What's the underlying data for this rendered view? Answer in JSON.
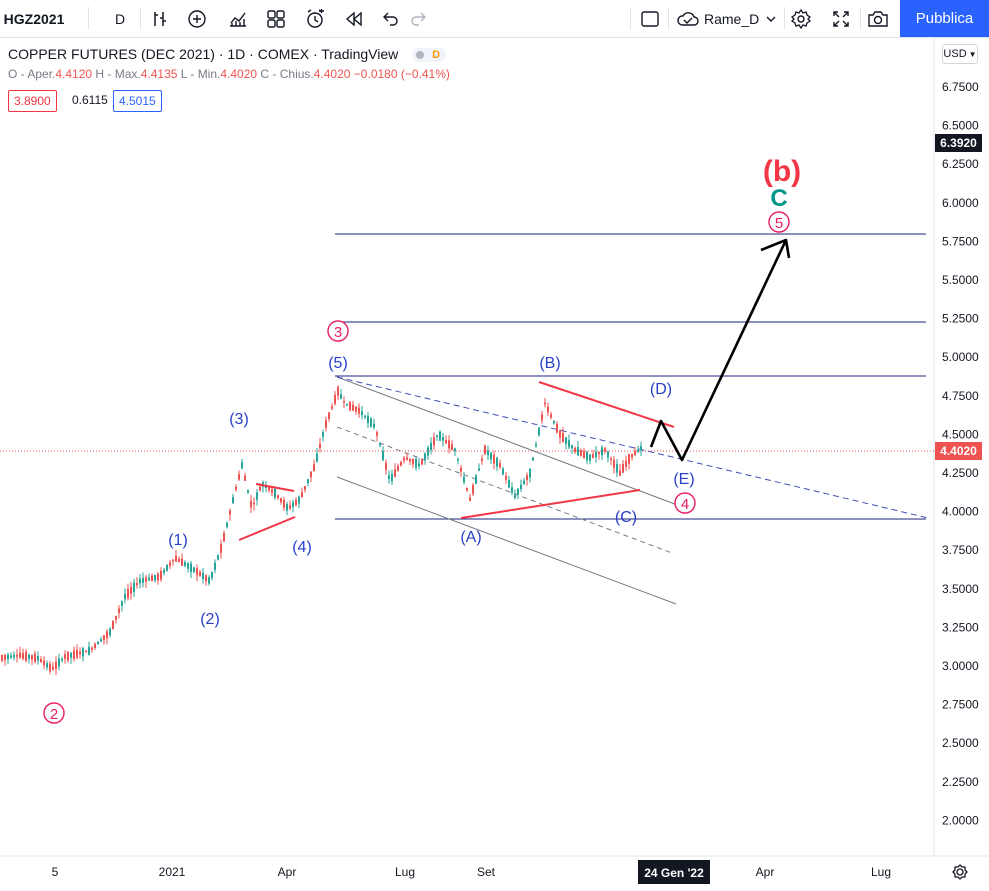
{
  "toolbar": {
    "symbol": "HGZ2021",
    "interval": "D",
    "layout_name": "Rame_D",
    "publish_label": "Pubblica",
    "icons": [
      "bar-style-icon",
      "add-indicator-icon",
      "indicators-icon",
      "templates-icon",
      "alert-icon",
      "replay-icon",
      "undo-icon",
      "redo-icon",
      "rectangle-icon",
      "cloud-icon",
      "settings-icon",
      "fullscreen-icon",
      "camera-icon"
    ]
  },
  "legend": {
    "title": "COPPER FUTURES (DEC 2021) · 1D · COMEX · TradingView",
    "market_status": "D",
    "open_label": "O - Aper.",
    "open": "4.4120",
    "high_label": "H - Max.",
    "high": "4.4135",
    "low_label": "L - Min.",
    "low": "4.4020",
    "close_label": "C - Chius.",
    "close": "4.4020",
    "change": "−0.0180 (−0.41%)",
    "bid": "3.8900",
    "spread": "0.6115",
    "ask": "4.5015"
  },
  "price_axis": {
    "currency": "USD",
    "ticks": [
      "6.7500",
      "6.5000",
      "6.2500",
      "6.0000",
      "5.7500",
      "5.5000",
      "5.2500",
      "5.0000",
      "4.7500",
      "4.5000",
      "4.2500",
      "4.0000",
      "3.7500",
      "3.5000",
      "3.2500",
      "3.0000",
      "2.7500",
      "2.5000",
      "2.2500",
      "2.0000"
    ],
    "highlight_high": "6.3920",
    "last_price": "4.4020"
  },
  "time_axis": {
    "labels": [
      "5",
      "2021",
      "Apr",
      "Lug",
      "Set",
      "Apr",
      "Lug"
    ],
    "cursor_label": "24 Gen '22"
  },
  "wave_labels": {
    "big_b": "(b)",
    "c": "C",
    "c5": "5",
    "c3": "3",
    "c2": "2",
    "c4": "4",
    "w1": "(1)",
    "w2": "(2)",
    "w3": "(3)",
    "w4": "(4)",
    "w5": "(5)",
    "wa": "(A)",
    "wb": "(B)",
    "wc": "(C)",
    "wd": "(D)",
    "we": "(E)"
  },
  "colors": {
    "accent": "#2962ff",
    "wave_blue": "#2940c8",
    "red": "#f23645",
    "pink": "#e91e63",
    "teal": "#009688",
    "candle_up": "#26a69a",
    "candle_down": "#ef5350",
    "level_line": "#1a237e"
  }
}
